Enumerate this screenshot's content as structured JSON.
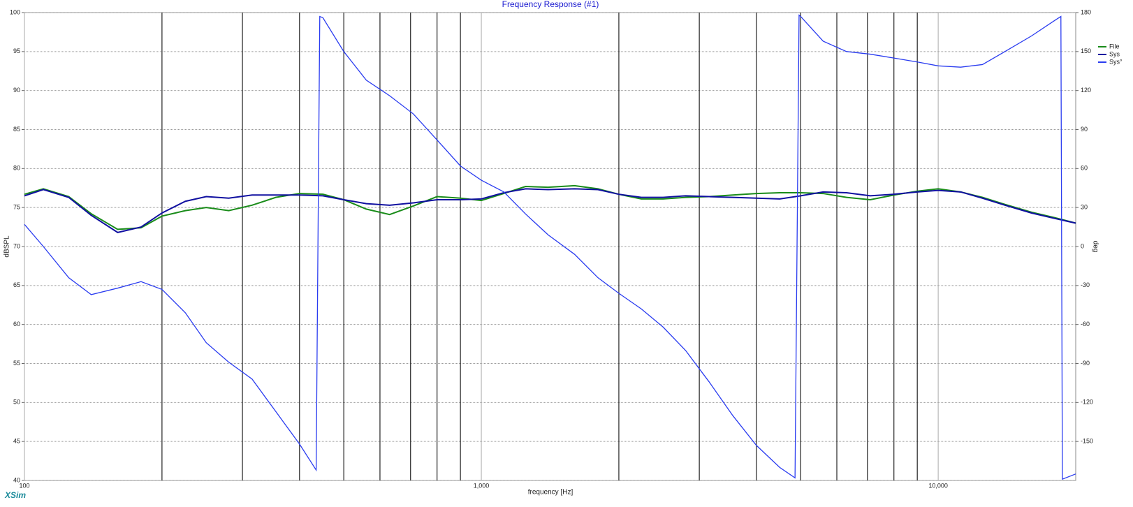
{
  "chart_data": {
    "type": "line",
    "title": "Frequency Response (#1)",
    "x_label": "frequency [Hz]",
    "y_label": "dBSPL",
    "y2_label": "deg",
    "brand": "XSim",
    "log_x": true,
    "grid": true,
    "legend": "upper right",
    "xlim": [
      100,
      20000
    ],
    "xticks": [
      {
        "value": 100,
        "label": "100"
      },
      {
        "value": 1000,
        "label": "1,000"
      },
      {
        "value": 10000,
        "label": "10,000"
      }
    ],
    "xgrid_minor": [
      200,
      300,
      400,
      500,
      600,
      700,
      800,
      900,
      2000,
      3000,
      4000,
      5000,
      6000,
      7000,
      8000,
      9000
    ],
    "ylim": [
      40,
      100
    ],
    "yticks": [
      40,
      45,
      50,
      55,
      60,
      65,
      70,
      75,
      80,
      85,
      90,
      95,
      100
    ],
    "y2lim": [
      -180,
      180
    ],
    "y2ticks": [
      -150,
      -120,
      -90,
      -60,
      -30,
      0,
      30,
      60,
      90,
      120,
      150,
      180
    ],
    "x": [
      100,
      110,
      125,
      140,
      160,
      180,
      200,
      225,
      250,
      280,
      315,
      355,
      400,
      450,
      500,
      560,
      630,
      710,
      800,
      900,
      1000,
      1120,
      1250,
      1400,
      1600,
      1800,
      2000,
      2240,
      2500,
      2800,
      3150,
      3550,
      4000,
      4500,
      5000,
      5600,
      6300,
      7100,
      8000,
      9000,
      10000,
      11200,
      12500,
      14000,
      16000,
      18000,
      20000
    ],
    "series": [
      {
        "name": "File",
        "color": "#1a8c1a",
        "values": [
          76.7,
          77.4,
          76.4,
          74.2,
          72.2,
          72.4,
          73.9,
          74.6,
          75.0,
          74.6,
          75.3,
          76.3,
          76.8,
          76.7,
          76.0,
          74.8,
          74.1,
          75.2,
          76.4,
          76.2,
          75.9,
          76.8,
          77.7,
          77.6,
          77.8,
          77.4,
          76.7,
          76.1,
          76.1,
          76.3,
          76.4,
          76.6,
          76.8,
          76.9,
          76.9,
          76.8,
          76.3,
          76.0,
          76.6,
          77.1,
          77.4,
          77.0,
          76.3,
          75.4,
          74.4,
          73.7,
          73.0
        ]
      },
      {
        "name": "Sys",
        "color": "#1010a0",
        "values": [
          76.5,
          77.3,
          76.3,
          74.0,
          71.8,
          72.5,
          74.3,
          75.8,
          76.4,
          76.2,
          76.6,
          76.6,
          76.6,
          76.5,
          76.0,
          75.5,
          75.3,
          75.6,
          76.0,
          76.0,
          76.1,
          76.9,
          77.4,
          77.3,
          77.4,
          77.3,
          76.7,
          76.3,
          76.3,
          76.5,
          76.4,
          76.3,
          76.2,
          76.1,
          76.5,
          77.0,
          76.9,
          76.5,
          76.7,
          77.0,
          77.2,
          77.0,
          76.2,
          75.3,
          74.3,
          73.6,
          73.0
        ]
      },
      {
        "name": "Sys°",
        "color": "#2a3cf0",
        "axis": "y2",
        "x": [
          100,
          110,
          125,
          140,
          160,
          180,
          200,
          225,
          250,
          280,
          315,
          355,
          400,
          435,
          443,
          450,
          500,
          560,
          630,
          710,
          800,
          900,
          1000,
          1120,
          1250,
          1400,
          1600,
          1800,
          2000,
          2240,
          2500,
          2800,
          3150,
          3550,
          4000,
          4500,
          4860,
          4960,
          5000,
          5600,
          6300,
          7100,
          8000,
          9000,
          10000,
          11200,
          12500,
          14000,
          16000,
          18000,
          18560,
          18700,
          20000
        ],
        "values": [
          17,
          0,
          -24,
          -37,
          -32,
          -27,
          -33,
          -51,
          -74,
          -89,
          -102,
          -127,
          -152,
          -172,
          177,
          176,
          150,
          128,
          116,
          102,
          82,
          62,
          51,
          42,
          25,
          9,
          -6,
          -24,
          -36,
          -48,
          -62,
          -80,
          -104,
          -130,
          -153,
          -170,
          -178,
          178,
          177,
          158,
          150,
          148,
          145,
          142,
          139,
          138,
          140,
          150,
          162,
          174,
          177,
          -179,
          -175
        ]
      }
    ]
  }
}
